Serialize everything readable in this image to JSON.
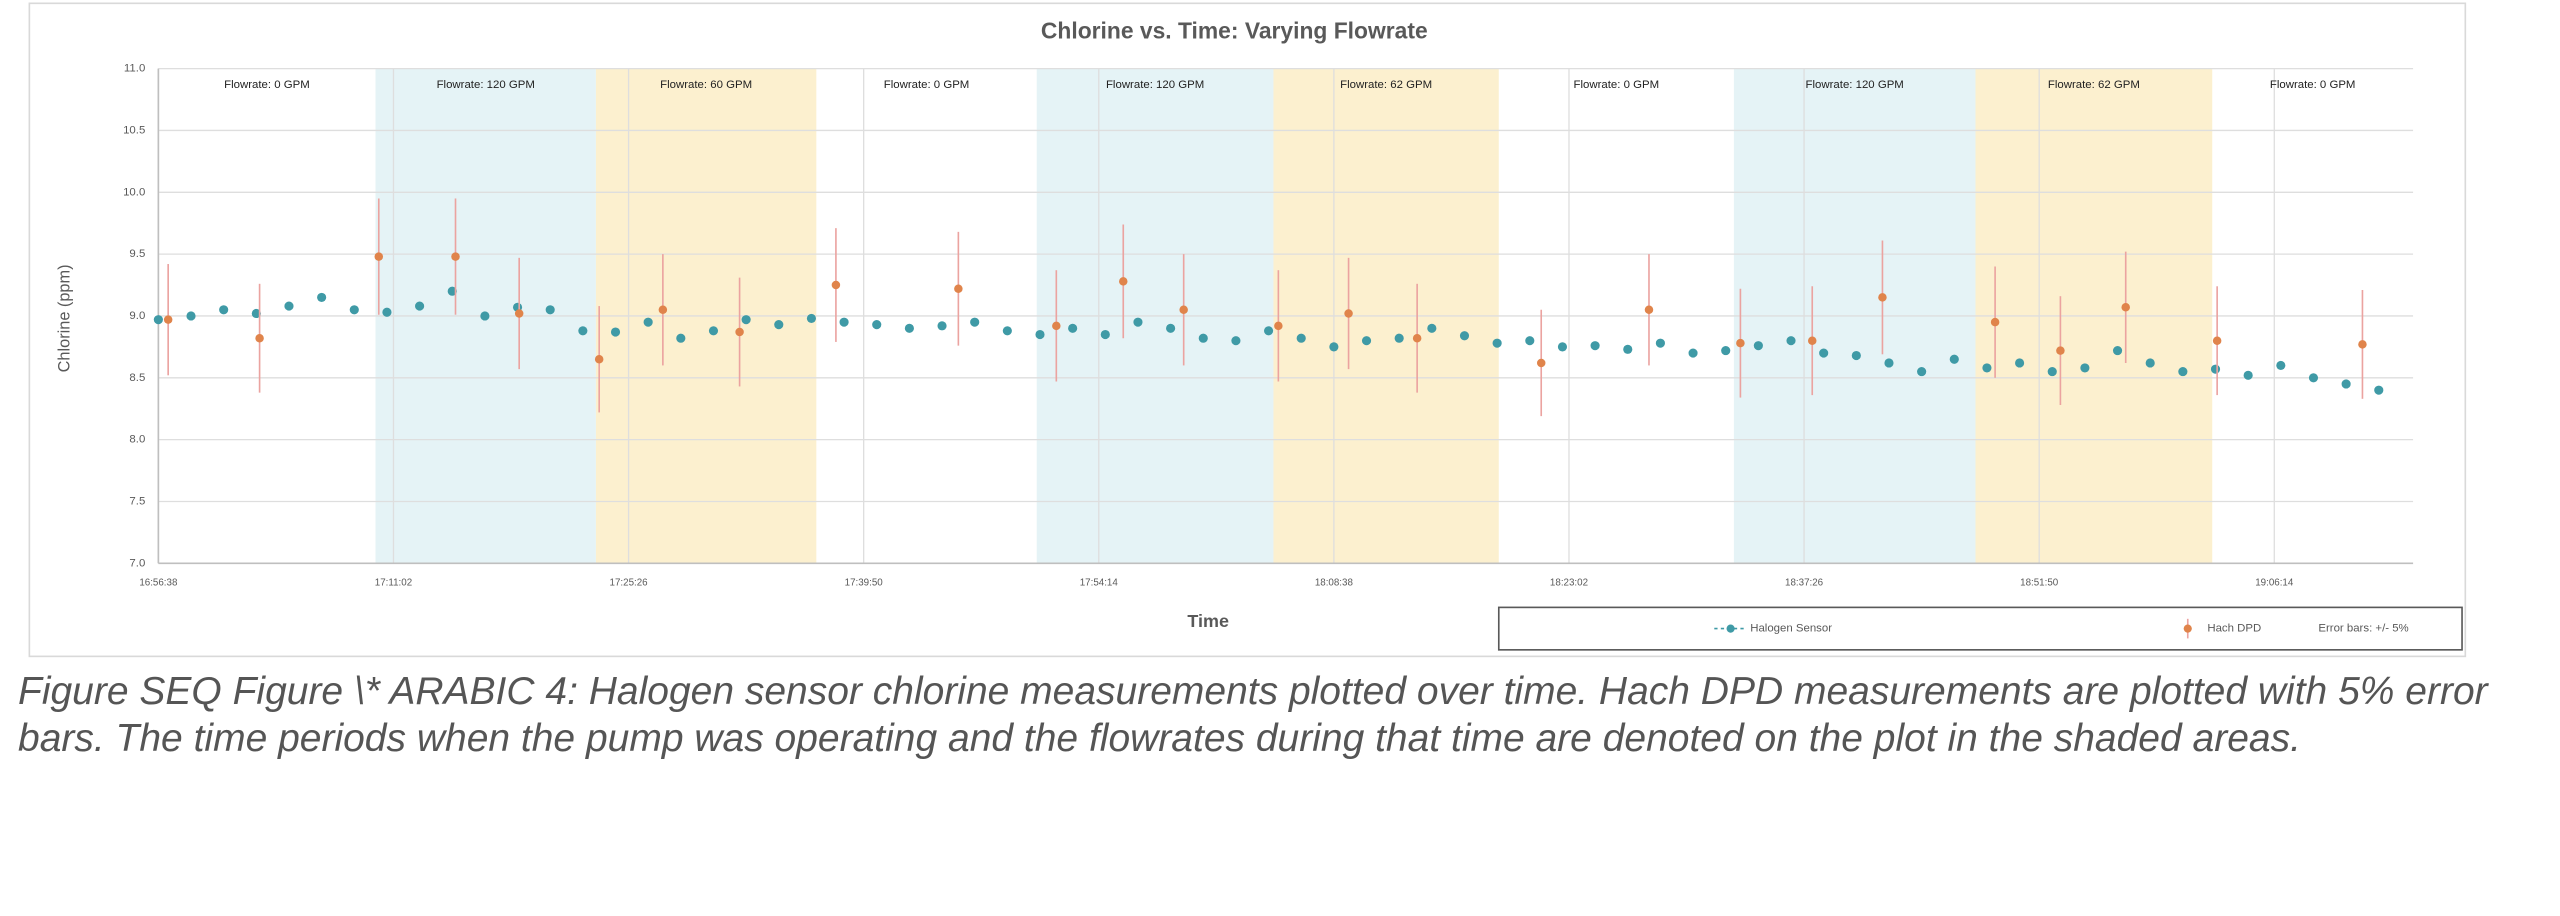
{
  "chart_data": {
    "type": "scatter",
    "title": "Chlorine vs. Time: Varying Flowrate",
    "x_label": "Time",
    "y_label": "Chlorine (ppm)",
    "xlim": [
      "16:56:38",
      "19:14:44"
    ],
    "xticks": [
      "16:56:38",
      "17:11:02",
      "17:25:26",
      "17:39:50",
      "17:54:14",
      "18:08:38",
      "18:23:02",
      "18:37:26",
      "18:51:50",
      "19:06:14"
    ],
    "ylim": [
      7,
      11
    ],
    "yticks": [
      {
        "value": 7,
        "label": "7.0"
      },
      7.5,
      {
        "value": 8,
        "label": "8.0"
      },
      8.5,
      {
        "value": 9,
        "label": "9.0"
      },
      9.5,
      {
        "value": 10,
        "label": "10.0"
      },
      10.5,
      {
        "value": 11,
        "label": "11.0"
      }
    ],
    "grid": true,
    "regions": [
      {
        "label": "Flowrate: 0 GPM",
        "start": "16:56:38",
        "end": "17:09:56"
      },
      {
        "label": "Flowrate: 120 GPM",
        "start": "17:09:56",
        "end": "17:23:26",
        "color": "#e5f3f6"
      },
      {
        "label": "Flowrate: 60 GPM",
        "start": "17:23:26",
        "end": "17:36:56",
        "color": "#fcf0cf"
      },
      {
        "label": "Flowrate: 0 GPM",
        "start": "17:36:56",
        "end": "17:50:26"
      },
      {
        "label": "Flowrate: 120 GPM",
        "start": "17:50:26",
        "end": "18:04:56",
        "color": "#e5f3f6"
      },
      {
        "label": "Flowrate: 62 GPM",
        "start": "18:04:56",
        "end": "18:18:44",
        "color": "#fcf0cf"
      },
      {
        "label": "Flowrate: 0 GPM",
        "start": "18:18:44",
        "end": "18:33:08"
      },
      {
        "label": "Flowrate: 120 GPM",
        "start": "18:33:08",
        "end": "18:47:56",
        "color": "#e5f3f6"
      },
      {
        "label": "Flowrate: 62 GPM",
        "start": "18:47:56",
        "end": "19:02:26",
        "color": "#fcf0cf"
      },
      {
        "label": "Flowrate: 0 GPM",
        "start": "19:02:26",
        "end": "19:14:44"
      }
    ],
    "series": [
      {
        "name": "Halogen Sensor",
        "color": "#3f9aa6",
        "x": [
          "16:56:38",
          "16:58:38",
          "17:00:38",
          "17:02:38",
          "17:04:38",
          "17:06:38",
          "17:08:38",
          "17:10:38",
          "17:12:38",
          "17:14:38",
          "17:16:38",
          "17:18:38",
          "17:20:38",
          "17:22:38",
          "17:24:38",
          "17:26:38",
          "17:28:38",
          "17:30:38",
          "17:32:38",
          "17:34:38",
          "17:36:38",
          "17:38:38",
          "17:40:38",
          "17:42:38",
          "17:44:38",
          "17:46:38",
          "17:48:38",
          "17:50:38",
          "17:52:38",
          "17:54:38",
          "17:56:38",
          "17:58:38",
          "18:00:38",
          "18:02:38",
          "18:04:38",
          "18:06:38",
          "18:08:38",
          "18:10:38",
          "18:12:38",
          "18:14:38",
          "18:16:38",
          "18:18:38",
          "18:20:38",
          "18:22:38",
          "18:24:38",
          "18:26:38",
          "18:28:38",
          "18:30:38",
          "18:32:38",
          "18:34:38",
          "18:36:38",
          "18:38:38",
          "18:40:38",
          "18:42:38",
          "18:44:38",
          "18:46:38",
          "18:48:38",
          "18:50:38",
          "18:52:38",
          "18:54:38",
          "18:56:38",
          "18:58:38",
          "19:00:38",
          "19:02:38",
          "19:04:38",
          "19:06:38",
          "19:08:38",
          "19:10:38",
          "19:12:38"
        ],
        "values": [
          8.97,
          9.0,
          9.05,
          9.02,
          9.08,
          9.15,
          9.05,
          9.03,
          9.08,
          9.2,
          9.0,
          9.07,
          9.05,
          8.88,
          8.87,
          8.95,
          8.82,
          8.88,
          8.97,
          8.93,
          8.98,
          8.95,
          8.93,
          8.9,
          8.92,
          8.95,
          8.88,
          8.85,
          8.9,
          8.85,
          8.95,
          8.9,
          8.82,
          8.8,
          8.88,
          8.82,
          8.75,
          8.8,
          8.82,
          8.9,
          8.84,
          8.78,
          8.8,
          8.75,
          8.76,
          8.73,
          8.78,
          8.7,
          8.72,
          8.76,
          8.8,
          8.7,
          8.68,
          8.62,
          8.55,
          8.65,
          8.58,
          8.62,
          8.55,
          8.58,
          8.72,
          8.62,
          8.55,
          8.57,
          8.52,
          8.6,
          8.5,
          8.45,
          8.4
        ]
      },
      {
        "name": "Hach DPD",
        "color": "#e0844b",
        "error_color": "#eba3a0",
        "x": [
          "16:57:14",
          "17:02:50",
          "17:10:08",
          "17:14:50",
          "17:18:44",
          "17:23:38",
          "17:27:32",
          "17:32:14",
          "17:38:08",
          "17:45:38",
          "17:51:38",
          "17:55:44",
          "17:59:26",
          "18:05:14",
          "18:09:32",
          "18:13:44",
          "18:21:20",
          "18:27:56",
          "18:33:32",
          "18:37:56",
          "18:42:14",
          "18:49:08",
          "18:53:08",
          "18:57:08",
          "19:02:44",
          "19:11:38"
        ],
        "values": [
          8.97,
          8.82,
          9.48,
          9.48,
          9.02,
          8.65,
          9.05,
          8.87,
          9.25,
          9.22,
          8.92,
          9.28,
          9.05,
          8.92,
          9.02,
          8.82,
          8.62,
          9.05,
          8.78,
          8.8,
          9.15,
          8.95,
          8.72,
          9.07,
          8.8,
          8.77
        ],
        "errors": [
          0.45,
          0.44,
          0.47,
          0.47,
          0.45,
          0.43,
          0.45,
          0.44,
          0.46,
          0.46,
          0.45,
          0.46,
          0.45,
          0.45,
          0.45,
          0.44,
          0.43,
          0.45,
          0.44,
          0.44,
          0.46,
          0.45,
          0.44,
          0.45,
          0.44,
          0.44
        ]
      }
    ],
    "error_label": "Error bars: +/- 5%"
  },
  "caption": "Figure  SEQ Figure \\* ARABIC 4: Halogen sensor chlorine measurements plotted over time. Hach DPD measurements are plotted with 5% error bars. The time periods when the pump was operating and the flowrates during that time are denoted on the plot in the shaded areas."
}
